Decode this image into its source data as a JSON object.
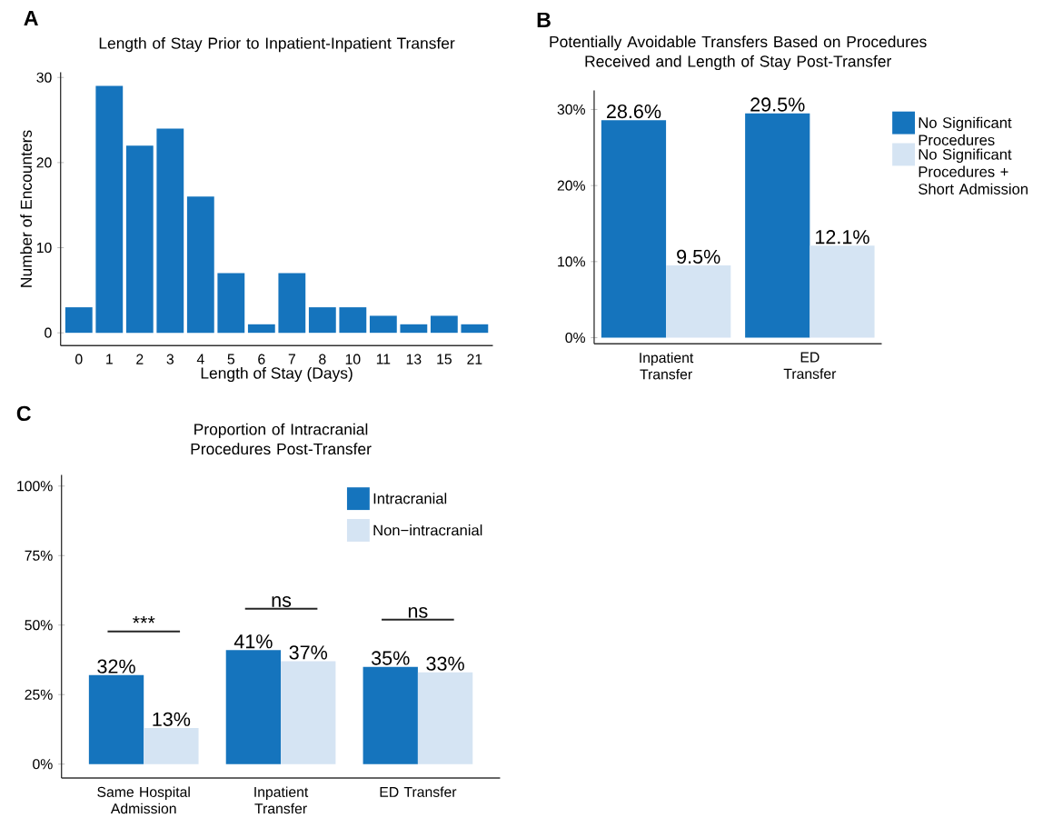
{
  "chart_data": [
    {
      "type": "bar",
      "title": "Length of Stay Prior to Inpatient-Inpatient Transfer",
      "xlabel": "Length of Stay (Days)",
      "ylabel": "Number of Encounters",
      "categories": [
        "0",
        "1",
        "2",
        "3",
        "4",
        "5",
        "6",
        "7",
        "8",
        "10",
        "11",
        "13",
        "15",
        "21"
      ],
      "values": [
        3,
        29,
        22,
        24,
        16,
        7,
        1,
        7,
        3,
        3,
        2,
        1,
        2,
        1
      ],
      "color": "#1574bd",
      "ylim": [
        -1.5,
        30.6
      ],
      "yticks": [
        0,
        10,
        20,
        30
      ],
      "annotations": [
        "A"
      ]
    },
    {
      "type": "bar",
      "title": "Potentially Avoidable Transfers Based on Procedures Received and Length of Stay Post-Transfer",
      "categories": [
        "Inpatient Transfer",
        "ED Transfer"
      ],
      "series": [
        {
          "name": "No Significant Procedures",
          "color": "#1574bd",
          "values": [
            28.6,
            29.5
          ],
          "value_labels": [
            "28.6%",
            "29.5%"
          ]
        },
        {
          "name": "No Significant Procedures + Short Admission",
          "color": "#d5e4f3",
          "values": [
            9.5,
            12.1
          ],
          "value_labels": [
            "9.5%",
            "12.1%"
          ]
        }
      ],
      "ylim": [
        -0.8,
        32.5
      ],
      "yticks": [
        {
          "value": 0,
          "label": "0%"
        },
        {
          "value": 10,
          "label": "10%"
        },
        {
          "value": 20,
          "label": "20%"
        },
        {
          "value": 30,
          "label": "30%"
        }
      ],
      "legend": "right",
      "annotations": [
        "B"
      ]
    },
    {
      "type": "bar",
      "title": "Proportion of Intracranial Procedures Post-Transfer",
      "categories": [
        "Same Hospital Admission",
        "Inpatient Transfer",
        "ED Transfer"
      ],
      "series": [
        {
          "name": "Intracranial",
          "color": "#1574bd",
          "values": [
            32,
            41,
            35
          ],
          "value_labels": [
            "32%",
            "41%",
            "35%"
          ]
        },
        {
          "name": "Non−intracranial",
          "color": "#d5e4f3",
          "values": [
            13,
            37,
            33
          ],
          "value_labels": [
            "13%",
            "37%",
            "33%"
          ]
        }
      ],
      "ylim": [
        -5,
        104
      ],
      "yticks": [
        {
          "value": 0,
          "label": "0%"
        },
        {
          "value": 25,
          "label": "25%"
        },
        {
          "value": 50,
          "label": "50%"
        },
        {
          "value": 75,
          "label": "75%"
        },
        {
          "value": 100,
          "label": "100%"
        }
      ],
      "legend": "top right",
      "annotations": [
        "C",
        "***",
        "ns",
        "ns"
      ]
    }
  ]
}
